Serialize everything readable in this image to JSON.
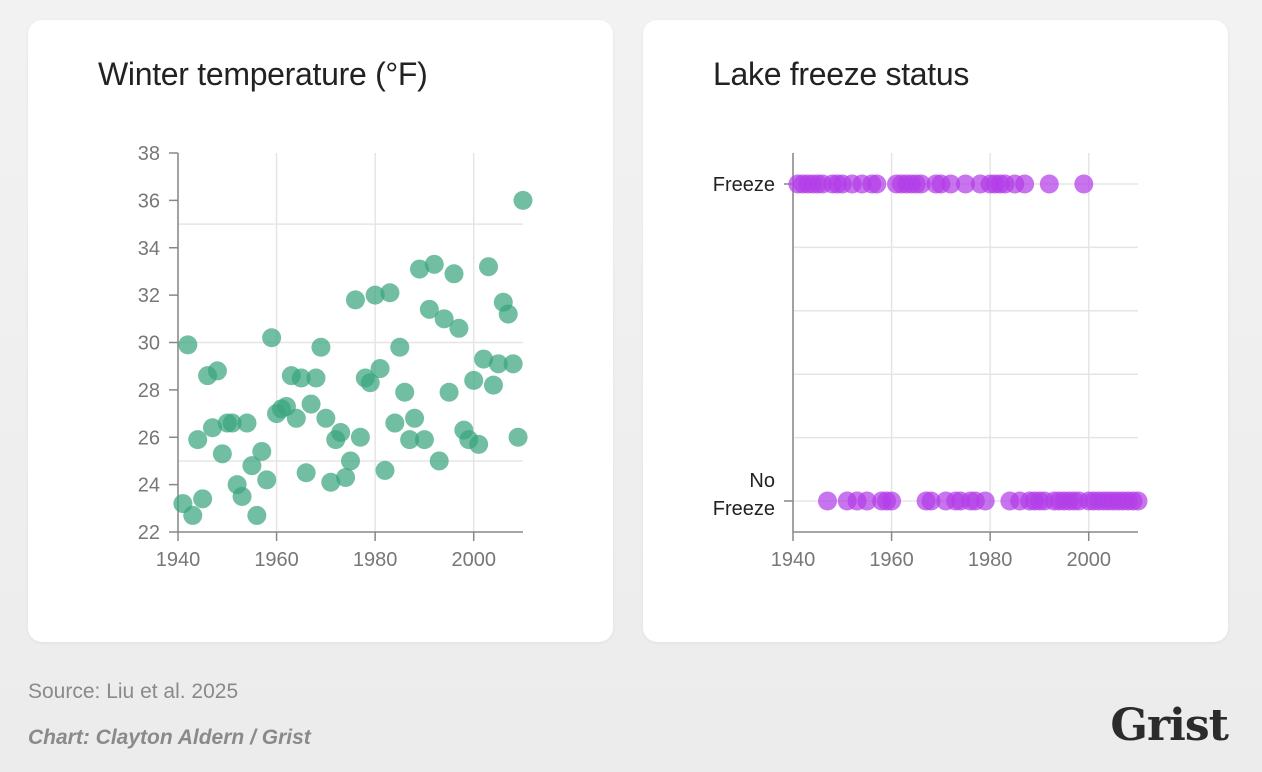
{
  "colors": {
    "temperature_dot": "#3aa57e",
    "freeze_dot": "#b33ee8",
    "grid": "#e5e5e5",
    "axis": "#888888"
  },
  "footer": {
    "source": "Source: Liu et al. 2025",
    "credit": "Chart: Clayton Aldern / Grist",
    "logo": "Grist"
  },
  "chart_data": [
    {
      "type": "scatter",
      "title": "Winter temperature (°F)",
      "xlabel": "",
      "ylabel": "",
      "xlim": [
        1940,
        2010
      ],
      "ylim": [
        22,
        38
      ],
      "x_ticks": [
        1940,
        1960,
        1980,
        2000
      ],
      "y_ticks": [
        22,
        24,
        26,
        28,
        30,
        32,
        34,
        36,
        38
      ],
      "grid": true,
      "series": [
        {
          "name": "Winter temperature",
          "x": [
            1941,
            1942,
            1943,
            1944,
            1945,
            1946,
            1947,
            1948,
            1949,
            1950,
            1951,
            1952,
            1953,
            1954,
            1955,
            1956,
            1957,
            1958,
            1959,
            1960,
            1961,
            1962,
            1963,
            1964,
            1965,
            1966,
            1967,
            1968,
            1969,
            1970,
            1971,
            1972,
            1973,
            1974,
            1975,
            1976,
            1977,
            1978,
            1979,
            1980,
            1981,
            1982,
            1983,
            1984,
            1985,
            1986,
            1987,
            1988,
            1989,
            1990,
            1991,
            1992,
            1993,
            1994,
            1995,
            1996,
            1997,
            1998,
            1999,
            2000,
            2001,
            2002,
            2003,
            2004,
            2005,
            2006,
            2007,
            2008,
            2009,
            2010
          ],
          "y": [
            23.2,
            29.9,
            22.7,
            25.9,
            23.4,
            28.6,
            26.4,
            28.8,
            25.3,
            26.6,
            26.6,
            24.0,
            23.5,
            26.6,
            24.8,
            22.7,
            25.4,
            24.2,
            30.2,
            27.0,
            27.2,
            27.3,
            28.6,
            26.8,
            28.5,
            24.5,
            27.4,
            28.5,
            29.8,
            26.8,
            24.1,
            25.9,
            26.2,
            24.3,
            25.0,
            31.8,
            26.0,
            28.5,
            28.3,
            32.0,
            28.9,
            24.6,
            32.1,
            26.6,
            29.8,
            27.9,
            25.9,
            26.8,
            33.1,
            25.9,
            31.4,
            33.3,
            25.0,
            31.0,
            27.9,
            32.9,
            30.6,
            26.3,
            25.9,
            28.4,
            25.7,
            29.3,
            33.2,
            28.2,
            29.1,
            31.7,
            31.2,
            29.1,
            26.0,
            36.0
          ]
        }
      ]
    },
    {
      "type": "scatter",
      "title": "Lake freeze status",
      "xlabel": "",
      "ylabel": "",
      "xlim": [
        1940,
        2010
      ],
      "x_ticks": [
        1940,
        1960,
        1980,
        2000
      ],
      "categories": [
        "Freeze",
        "No Freeze"
      ],
      "grid": true,
      "series": [
        {
          "name": "Freeze",
          "x": [
            1941,
            1942,
            1943,
            1944,
            1945,
            1946,
            1948,
            1949,
            1950,
            1952,
            1954,
            1956,
            1957,
            1961,
            1962,
            1963,
            1964,
            1965,
            1966,
            1969,
            1970,
            1972,
            1975,
            1978,
            1980,
            1981,
            1982,
            1983,
            1985,
            1987,
            1992,
            1999
          ]
        },
        {
          "name": "No Freeze",
          "x": [
            1947,
            1951,
            1953,
            1955,
            1958,
            1959,
            1960,
            1967,
            1968,
            1971,
            1973,
            1974,
            1976,
            1977,
            1979,
            1984,
            1986,
            1988,
            1989,
            1990,
            1991,
            1993,
            1994,
            1995,
            1996,
            1997,
            1998,
            2000,
            2001,
            2002,
            2003,
            2004,
            2005,
            2006,
            2007,
            2008,
            2009,
            2010
          ]
        }
      ]
    }
  ]
}
